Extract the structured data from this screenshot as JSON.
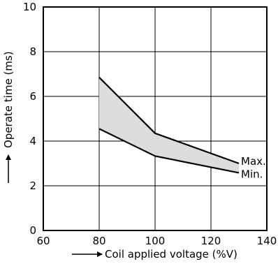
{
  "chart_data": {
    "type": "line",
    "xlabel": "Coil applied voltage (%V)",
    "ylabel": "Operate time (ms)",
    "xlim": [
      60,
      140
    ],
    "ylim": [
      0,
      10
    ],
    "xticks": [
      60,
      80,
      100,
      120,
      140
    ],
    "yticks": [
      0,
      2,
      4,
      6,
      8,
      10
    ],
    "grid": true,
    "band_fill_color": "#dcdcdc",
    "line_color": "#000000",
    "series": [
      {
        "name": "Max.",
        "x": [
          80,
          100,
          130
        ],
        "y": [
          6.85,
          4.35,
          3.0
        ]
      },
      {
        "name": "Min.",
        "x": [
          80,
          100,
          130
        ],
        "y": [
          4.55,
          3.33,
          2.58
        ]
      }
    ]
  }
}
